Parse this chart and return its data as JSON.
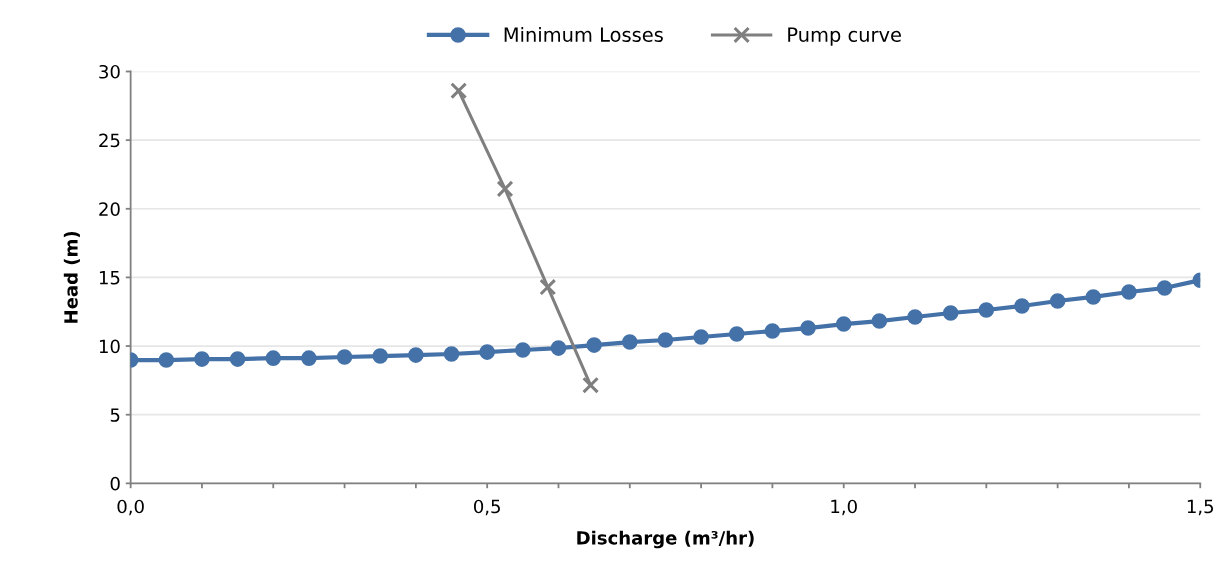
{
  "chart_data": {
    "type": "line",
    "xlabel": "Discharge (m³/hr)",
    "ylabel": "Head (m)",
    "x": [
      0,
      0.05,
      0.1,
      0.15,
      0.2,
      0.25,
      0.3,
      0.35,
      0.4,
      0.45,
      0.5,
      0.55,
      0.6,
      0.65,
      0.7,
      0.75,
      0.8,
      0.85,
      0.9,
      0.95,
      1.0,
      1.05,
      1.1,
      1.15,
      1.2,
      1.25,
      1.3,
      1.35,
      1.4,
      1.45,
      1.5
    ],
    "series": [
      {
        "name": "Minimum Losses",
        "color": "#4472a8",
        "marker": "circle",
        "values": [
          8.98,
          8.98,
          9.05,
          9.05,
          9.12,
          9.12,
          9.2,
          9.27,
          9.34,
          9.42,
          9.56,
          9.71,
          9.85,
          10.07,
          10.29,
          10.44,
          10.66,
          10.88,
          11.09,
          11.31,
          11.6,
          11.82,
          12.12,
          12.41,
          12.63,
          12.92,
          13.28,
          13.58,
          13.94,
          14.23,
          14.8
        ]
      },
      {
        "name": "Pump curve",
        "color": "#7f7f7f",
        "marker": "cross",
        "x": [
          0.46,
          0.525,
          0.585,
          0.645
        ],
        "values": [
          28.6,
          21.45,
          14.3,
          7.15
        ]
      }
    ],
    "xlim": [
      0,
      1.5
    ],
    "ylim": [
      0,
      30
    ],
    "xticks": [
      {
        "value": 0,
        "label": "0,0"
      },
      {
        "value": 0.1,
        "label": null
      },
      {
        "value": 0.2,
        "label": null
      },
      {
        "value": 0.3,
        "label": null
      },
      {
        "value": 0.4,
        "label": null
      },
      {
        "value": 0.5,
        "label": "0,5"
      },
      {
        "value": 0.6,
        "label": null
      },
      {
        "value": 0.7,
        "label": null
      },
      {
        "value": 0.8,
        "label": null
      },
      {
        "value": 0.9,
        "label": null
      },
      {
        "value": 1.0,
        "label": "1,0"
      },
      {
        "value": 1.1,
        "label": null
      },
      {
        "value": 1.2,
        "label": null
      },
      {
        "value": 1.3,
        "label": null
      },
      {
        "value": 1.4,
        "label": null
      },
      {
        "value": 1.5,
        "label": "1,5"
      }
    ],
    "yticks": [
      0,
      5,
      10,
      15,
      20,
      25,
      30
    ],
    "grid": "y",
    "legend": "top"
  }
}
